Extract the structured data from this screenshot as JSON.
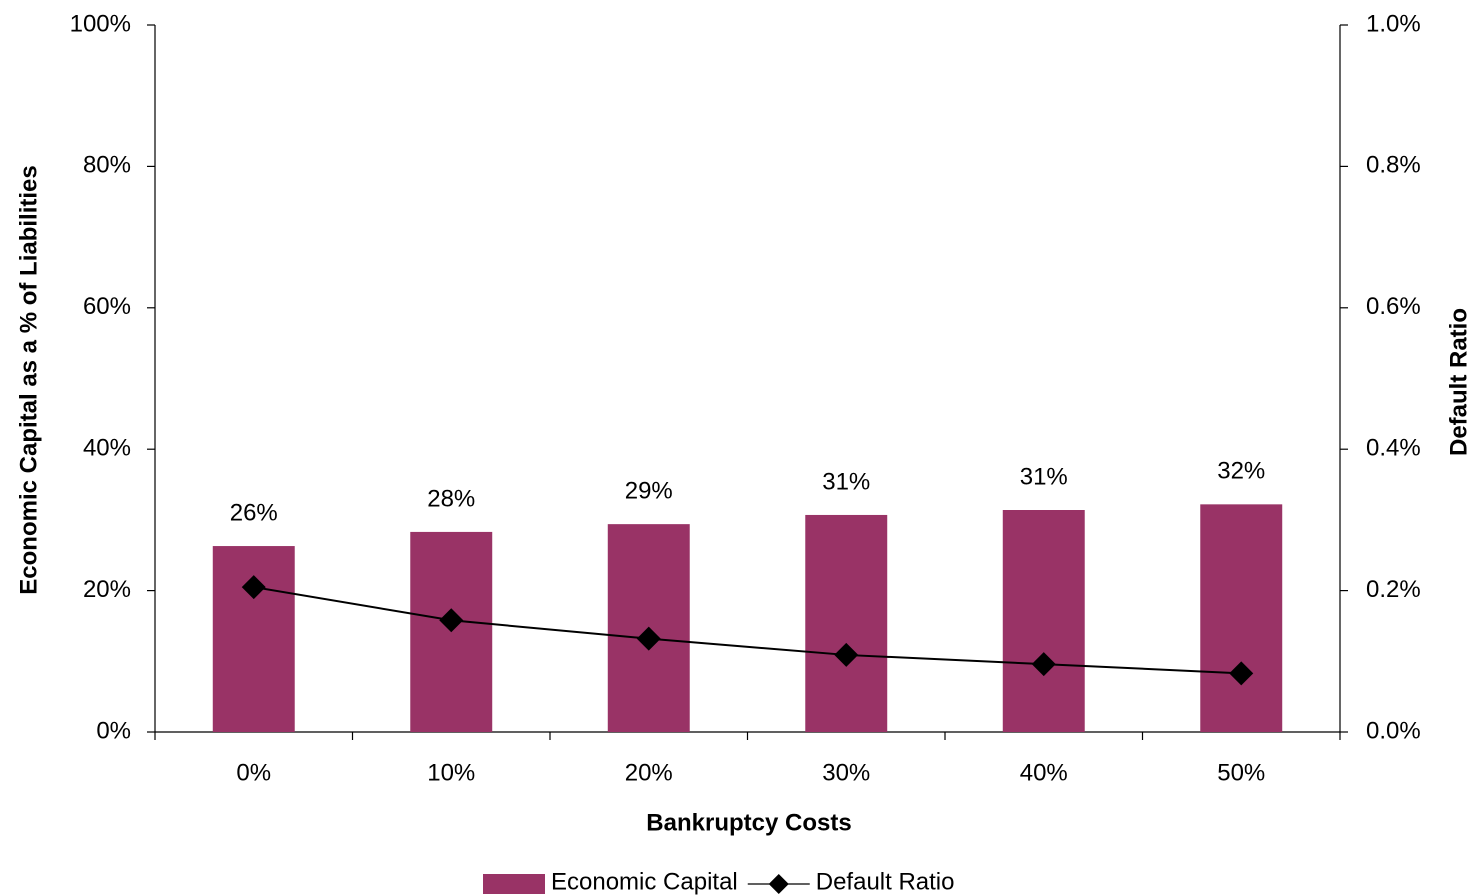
{
  "chart_data": {
    "type": "bar",
    "x_label": "Bankruptcy Costs",
    "y_label": "Economic Capital as a % of Liabilities",
    "y2_label": "Default Ratio",
    "categories": [
      "0%",
      "10%",
      "20%",
      "30%",
      "40%",
      "50%"
    ],
    "series": [
      {
        "name": "Economic Capital",
        "type": "bar",
        "color": "#993366",
        "values": [
          26.3,
          28.3,
          29.4,
          30.7,
          31.4,
          32.2
        ],
        "value_labels": [
          "26%",
          "28%",
          "29%",
          "31%",
          "31%",
          "32%"
        ]
      },
      {
        "name": "Default Ratio",
        "type": "line",
        "axis": "y2",
        "color": "#000000",
        "values": [
          0.205,
          0.158,
          0.132,
          0.109,
          0.096,
          0.083
        ]
      }
    ],
    "ylim": [
      0,
      100
    ],
    "yticks": [
      {
        "value": 0,
        "label": "0%"
      },
      {
        "value": 20,
        "label": "20%"
      },
      {
        "value": 40,
        "label": "40%"
      },
      {
        "value": 60,
        "label": "60%"
      },
      {
        "value": 80,
        "label": "80%"
      },
      {
        "value": 100,
        "label": "100%"
      }
    ],
    "y2lim": [
      0,
      1.0
    ],
    "y2ticks": [
      {
        "value": 0,
        "label": "0.0%"
      },
      {
        "value": 0.2,
        "label": "0.2%"
      },
      {
        "value": 0.4,
        "label": "0.4%"
      },
      {
        "value": 0.6,
        "label": "0.6%"
      },
      {
        "value": 0.8,
        "label": "0.8%"
      },
      {
        "value": 1.0,
        "label": "1.0%"
      }
    ],
    "grid": false,
    "legend": "bottom"
  }
}
